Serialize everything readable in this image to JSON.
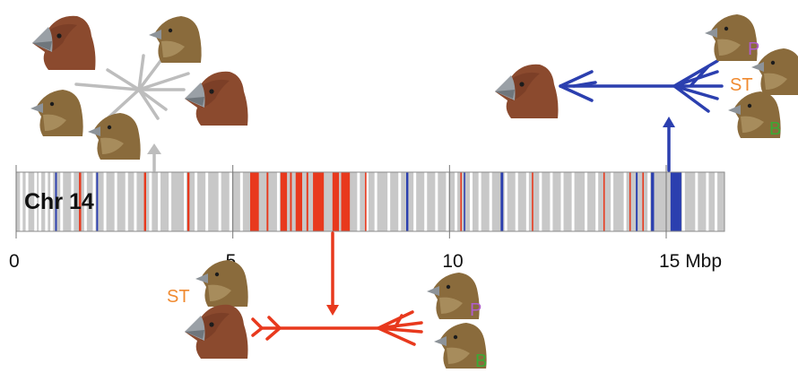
{
  "chromosome": {
    "label": "Chr 14",
    "length_mbp": 16.3,
    "background_color": "#c8c8c8",
    "outline_color": "#8a8a8a",
    "white_bands_mbp": [
      0.12,
      0.25,
      0.45,
      0.55,
      0.7,
      0.82,
      1.05,
      1.3,
      1.6,
      1.8,
      2.05,
      2.3,
      2.55,
      2.75,
      3.1,
      3.3,
      3.55,
      3.9,
      4.15,
      4.4,
      4.7,
      4.95,
      5.2,
      6.05,
      7.55,
      7.9,
      8.1,
      8.3,
      8.6,
      8.85,
      9.2,
      9.45,
      9.7,
      9.95,
      10.15,
      10.5,
      10.7,
      10.95,
      11.3,
      11.55,
      11.8,
      12.1,
      12.35,
      12.6,
      12.85,
      13.15,
      13.4,
      13.75,
      14.05,
      14.6,
      15.4,
      15.7,
      15.95,
      16.15
    ],
    "red_bands_mbp": [
      {
        "start": 1.45,
        "end": 1.5
      },
      {
        "start": 2.95,
        "end": 3.0
      },
      {
        "start": 3.95,
        "end": 4.0
      },
      {
        "start": 5.4,
        "end": 5.6
      },
      {
        "start": 5.78,
        "end": 5.82
      },
      {
        "start": 6.1,
        "end": 6.25
      },
      {
        "start": 6.32,
        "end": 6.36
      },
      {
        "start": 6.45,
        "end": 6.6
      },
      {
        "start": 6.7,
        "end": 6.74
      },
      {
        "start": 6.85,
        "end": 7.1
      },
      {
        "start": 7.3,
        "end": 7.45
      },
      {
        "start": 7.5,
        "end": 7.7
      },
      {
        "start": 8.05,
        "end": 8.08
      },
      {
        "start": 10.25,
        "end": 10.28
      },
      {
        "start": 11.9,
        "end": 11.93
      },
      {
        "start": 13.55,
        "end": 13.58
      },
      {
        "start": 14.15,
        "end": 14.18
      },
      {
        "start": 14.45,
        "end": 14.48
      }
    ],
    "blue_bands_mbp": [
      {
        "start": 0.9,
        "end": 0.94
      },
      {
        "start": 1.85,
        "end": 1.89
      },
      {
        "start": 9.0,
        "end": 9.05
      },
      {
        "start": 10.33,
        "end": 10.36
      },
      {
        "start": 11.18,
        "end": 11.24
      },
      {
        "start": 14.3,
        "end": 14.34
      },
      {
        "start": 14.65,
        "end": 14.72
      },
      {
        "start": 15.1,
        "end": 15.35
      }
    ]
  },
  "axis": {
    "ticks": [
      {
        "value": 0,
        "label": "0"
      },
      {
        "value": 5,
        "label": "5"
      },
      {
        "value": 10,
        "label": "10"
      },
      {
        "value": 15,
        "label": "15 Mbp"
      }
    ]
  },
  "trees": {
    "gray": {
      "color": "#bdbdbd",
      "position_mbp": 3.2
    },
    "red": {
      "color": "#e8391d",
      "position_mbp": 7.35,
      "labels": [
        {
          "text": "ST",
          "color": "#f08a30"
        },
        {
          "text": "P",
          "color": "#b05ccc"
        },
        {
          "text": "B",
          "color": "#3aaa35"
        }
      ]
    },
    "blue": {
      "color": "#2b3faf",
      "position_mbp": 15.2,
      "labels": [
        {
          "text": "P",
          "color": "#b05ccc"
        },
        {
          "text": "ST",
          "color": "#f08a30"
        },
        {
          "text": "B",
          "color": "#3aaa35"
        }
      ]
    }
  },
  "bird_icons": {
    "large_ground_finch": "large-beak-finch-icon",
    "small_finch": "small-beak-finch-icon",
    "large_plumage": "#8b4a2e",
    "small_plumage": "#8a6b3c",
    "beak": "#9aa0a6"
  }
}
